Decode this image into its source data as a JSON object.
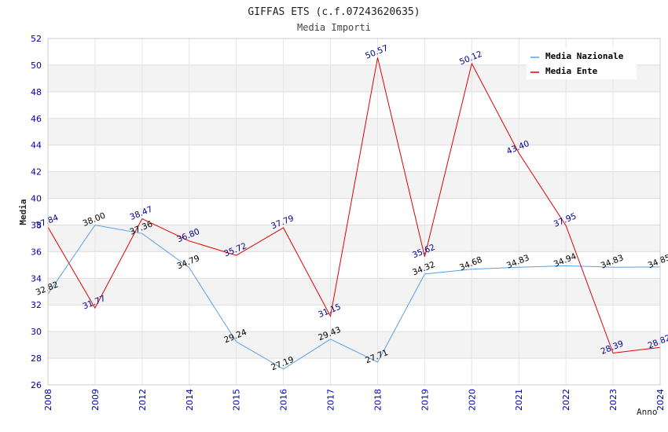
{
  "chart_data": {
    "type": "line",
    "title": "GIFFAS ETS (c.f.07243620635)",
    "subtitle": "Media Importi",
    "ylabel": "Media",
    "xlabel": "Anno",
    "ylim": [
      26,
      52
    ],
    "y_ticks": [
      "26",
      "28",
      "30",
      "32",
      "34",
      "36",
      "38",
      "40",
      "42",
      "44",
      "46",
      "48",
      "50",
      "52"
    ],
    "categories": [
      "2008",
      "2009",
      "2012",
      "2014",
      "2015",
      "2016",
      "2017",
      "2018",
      "2019",
      "2020",
      "2021",
      "2022",
      "2023",
      "2024"
    ],
    "grid": true,
    "legend_position": "top-right",
    "series": [
      {
        "name": "Media Nazionale",
        "color": "#5aa0e6",
        "values": [
          32.82,
          38.0,
          37.36,
          34.79,
          29.24,
          27.19,
          29.43,
          27.71,
          34.32,
          34.68,
          34.83,
          34.94,
          34.83,
          34.85
        ],
        "labels": [
          "32.82",
          "38.00",
          "37.36",
          "34.79",
          "29.24",
          "27.19",
          "29.43",
          "27.71",
          "34.32",
          "34.68",
          "34.83",
          "34.94",
          "34.83",
          "34.85"
        ]
      },
      {
        "name": "Media Ente",
        "color": "#e00000",
        "values": [
          37.84,
          31.77,
          38.47,
          36.8,
          35.72,
          37.79,
          31.15,
          50.57,
          35.62,
          50.12,
          43.4,
          37.95,
          28.39,
          28.82
        ],
        "labels": [
          "37.84",
          "31.77",
          "38.47",
          "36.80",
          "35.72",
          "37.79",
          "31.15",
          "50.57",
          "35.62",
          "50.12",
          "43.40",
          "37.95",
          "28.39",
          "28.82"
        ]
      }
    ]
  }
}
